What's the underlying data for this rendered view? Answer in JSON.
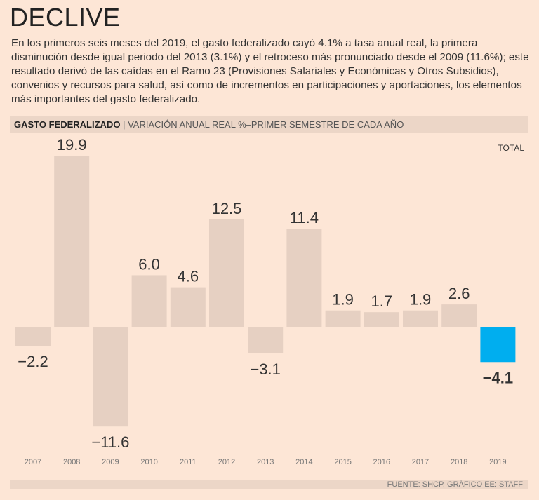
{
  "header": {
    "title": "DECLIVE",
    "description": "En los primeros seis meses del 2019, el gasto federalizado cayó 4.1% a tasa anual real, la primera disminución desde igual periodo del 2013 (3.1%) y el retroceso más pronunciado desde el 2009 (11.6%); este resultado derivó de las caídas en el Ramo 23 (Provisiones Salariales y Económicas y Otros Subsidios), convenios y recursos para salud, así como de incrementos en participaciones y aportaciones, los elementos más importantes del gasto federalizado."
  },
  "chart_data": {
    "type": "bar",
    "title": "GASTO FEDERALIZADO",
    "subtitle": "VARIACIÓN ANUAL REAL %–PRIMER SEMESTRE DE CADA AÑO",
    "legend": "TOTAL",
    "categories": [
      "2007",
      "2008",
      "2009",
      "2010",
      "2011",
      "2012",
      "2013",
      "2014",
      "2015",
      "2016",
      "2017",
      "2018",
      "2019"
    ],
    "values": [
      -2.2,
      19.9,
      -11.6,
      6.0,
      4.6,
      12.5,
      -3.1,
      11.4,
      1.9,
      1.7,
      1.9,
      2.6,
      -4.1
    ],
    "labels": [
      "−2.2",
      "19.9",
      "−11.6",
      "6.0",
      "4.6",
      "12.5",
      "−3.1",
      "11.4",
      "1.9",
      "1.7",
      "1.9",
      "2.6",
      "−4.1"
    ],
    "colors": {
      "bar": "#e6d0c2",
      "highlight": "#00aeef"
    },
    "highlight_category": "2019",
    "grid": false
  },
  "footer": {
    "source": "FUENTE: SHCP. GRÁFICO EE: STAFF"
  }
}
